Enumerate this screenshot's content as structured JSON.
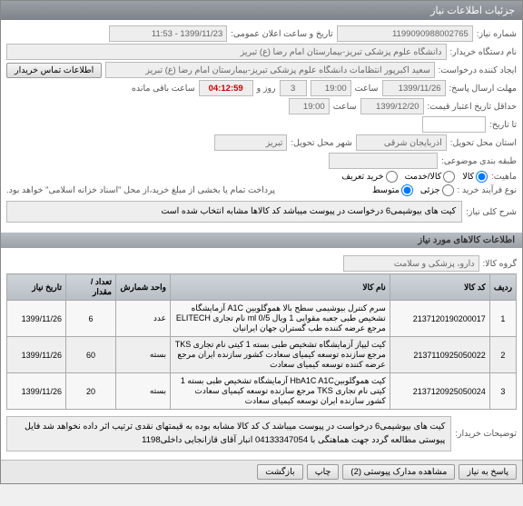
{
  "window": {
    "title": "جزئیات اطلاعات نیاز"
  },
  "fields": {
    "need_no_label": "شماره نیاز:",
    "need_no": "1199090988002765",
    "announce_label": "تاریخ و ساعت اعلان عمومی:",
    "announce": "1399/11/23 - 11:53",
    "buyer_org_label": "نام دستگاه خریدار:",
    "buyer_org": "دانشگاه علوم پزشکی تبریز-بیمارستان امام رضا (ع) تبریز",
    "creator_label": "ایجاد کننده درخواست:",
    "creator": "سعید اکبرپور انتظامات دانشگاه علوم پزشکی تبریز-بیمارستان امام رضا (ع) تبریز",
    "contact_btn": "اطلاعات تماس خریدار",
    "deadline_label": "مهلت ارسال پاسخ:",
    "deadline_date": "1399/11/26",
    "deadline_time": "19:00",
    "days": "3",
    "days_label": "روز و",
    "timer": "04:12:59",
    "remain_label": "ساعت باقی مانده",
    "hour_label": "ساعت",
    "validity_label": "حداقل تاریخ اعتبار قیمت:",
    "validity_date": "1399/12/20",
    "validity_time": "19:00",
    "to_date_label": "تا تاریخ:",
    "province_label": "استان محل تحویل:",
    "province": "آذربایجان شرقی",
    "city_label": "شهر محل تحویل:",
    "city": "تبریز",
    "budget_row_label": "طبقه بندی موضوعی:",
    "nature_label": "ماهیت:",
    "nature_goods": "کالا",
    "nature_service": "کالا/خدمت",
    "nature_custom": "خرید تعریف",
    "process_label": "نوع فرآیند خرید :",
    "process_low": "جزئی",
    "process_mid": "متوسط",
    "settlement_text": "پرداخت تمام یا بخشی از مبلغ خرید،از محل \"اسناد خزانه اسلامی\" خواهد بود.",
    "need_desc_label": "شرح کلی نیاز:",
    "need_desc": "کیت های بیوشیمی6 درخواست در پیوست میباشد کد کالاها مشابه انتخاب شده است"
  },
  "items_header": "اطلاعات کالاهای مورد نیاز",
  "group_label": "گروه کالا:",
  "group_value": "دارو، پزشکی و سلامت",
  "table": {
    "cols": [
      "ردیف",
      "کد کالا",
      "نام کالا",
      "واحد شمارش",
      "تعداد / مقدار",
      "تاریخ نیاز"
    ],
    "rows": [
      [
        "1",
        "2137120190200017",
        "سرم کنترل بیوشیمی سطح بالا هموگلوبین A1C آزمایشگاه تشخیص طبی جعبه مقوایی 1 ویال ml 0/5 نام تجاری ELITECH مرجع عرضه کننده طب گستران جهان ایرانیان",
        "عدد",
        "6",
        "1399/11/26"
      ],
      [
        "2",
        "2137110925050022",
        "کیت لیپاز آزمایشگاه تشخیص طبی بسته 1 کیتی نام تجاری TKS مرجع سازنده توسعه کیمیای سعادت کشور سازنده ایران مرجع عرضه کننده توسعه کیمیای سعادت",
        "بسته",
        "60",
        "1399/11/26"
      ],
      [
        "3",
        "2137120925050024",
        "کیت هموگلوبینHbA1C A1C آزمایشگاه تشخیص طبی بسته 1 کیتی نام تجاری TKS مرجع سازنده توسعه کیمیای سعادت کشور سازنده ایران توسعه کیمیای سعادت",
        "بسته",
        "20",
        "1399/11/26"
      ]
    ]
  },
  "buyer_notes_label": "توضیحات خریدار:",
  "buyer_notes": "کیت های بیوشیمی6 درخواست در پیوست میباشد ک کد کالا مشابه بوده به قیمتهای نقدی ترتیب اثر داده نخواهد شد فایل پیوستی مطالعه گردد جهت هماهنگی با 04133347054 انبار آقای قازانجایی داخلی1198",
  "footer": {
    "reply": "پاسخ به نیاز",
    "attach": "مشاهده مدارک پیوستی (2)",
    "print": "چاپ",
    "back": "بازگشت"
  }
}
